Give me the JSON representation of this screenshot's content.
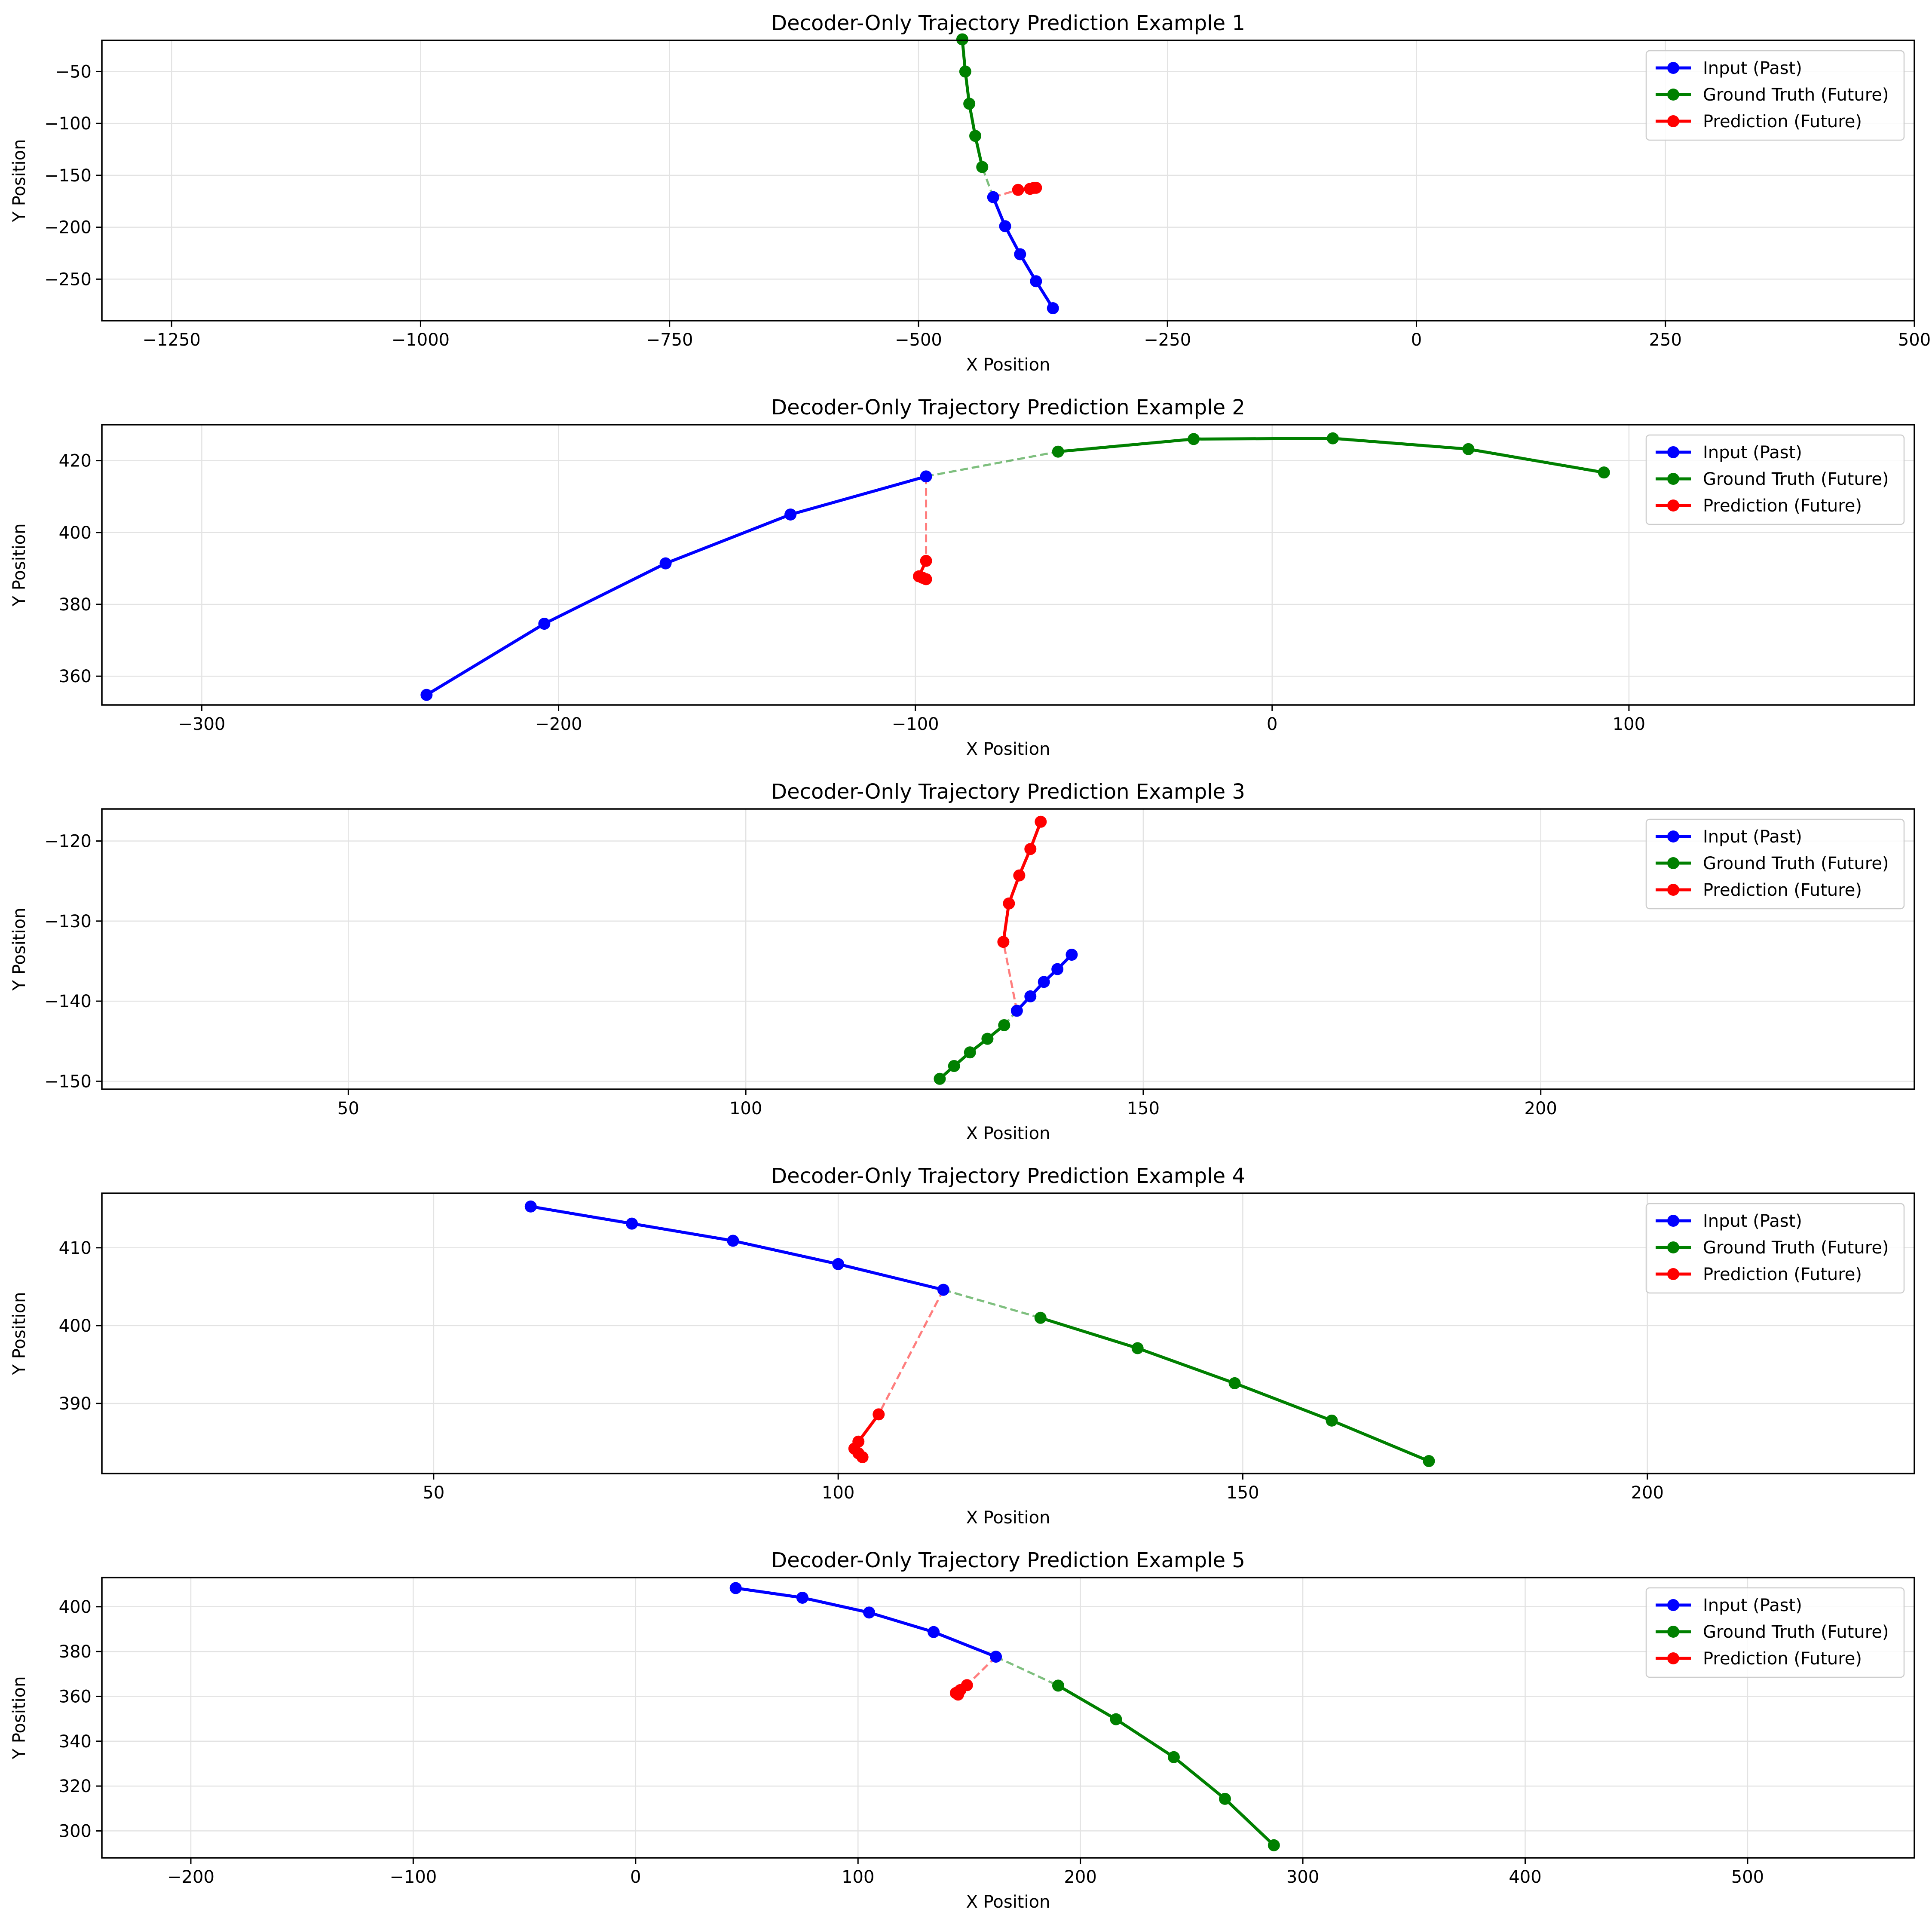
{
  "legend_labels": [
    "Input (Past)",
    "Ground Truth (Future)",
    "Prediction (Future)"
  ],
  "colors": {
    "input": "#0000ff",
    "ground_truth": "#008000",
    "prediction": "#ff0000",
    "grid": "#e3e3e3"
  },
  "chart_data": [
    {
      "type": "line",
      "title": "Decoder-Only Trajectory Prediction Example 1",
      "xlabel": "X Position",
      "ylabel": "Y Position",
      "xlim": [
        -1320,
        500
      ],
      "ylim": [
        -290,
        -20
      ],
      "xticks": [
        -1250,
        -1000,
        -750,
        -500,
        -250,
        0,
        250,
        500
      ],
      "yticks": [
        -50,
        -100,
        -150,
        -200,
        -250
      ],
      "grid": true,
      "legend_position": "top-right",
      "series": [
        {
          "name": "Input (Past)",
          "x": [
            -365,
            -382,
            -398,
            -413,
            -425
          ],
          "y": [
            -278,
            -252,
            -226,
            -199,
            -171
          ]
        },
        {
          "name": "Ground Truth (Future)",
          "x": [
            -436,
            -443,
            -449,
            -453,
            -456
          ],
          "y": [
            -142,
            -112,
            -81,
            -50,
            -19
          ]
        },
        {
          "name": "Prediction (Future)",
          "x": [
            -400,
            -388,
            -382,
            -384
          ],
          "y": [
            -164,
            -163,
            -162,
            -162
          ]
        }
      ]
    },
    {
      "type": "line",
      "title": "Decoder-Only Trajectory Prediction Example 2",
      "xlabel": "X Position",
      "ylabel": "Y Position",
      "xlim": [
        -328,
        180
      ],
      "ylim": [
        352,
        430
      ],
      "xticks": [
        -300,
        -200,
        -100,
        0,
        100
      ],
      "yticks": [
        360,
        380,
        400,
        420
      ],
      "grid": true,
      "legend_position": "top-right",
      "series": [
        {
          "name": "Input (Past)",
          "x": [
            -237,
            -204,
            -170,
            -135,
            -97
          ],
          "y": [
            354.8,
            374.6,
            391.4,
            405.0,
            415.6
          ]
        },
        {
          "name": "Ground Truth (Future)",
          "x": [
            -60,
            -22,
            17,
            55,
            93
          ],
          "y": [
            422.5,
            426.0,
            426.2,
            423.2,
            416.7
          ]
        },
        {
          "name": "Prediction (Future)",
          "x": [
            -97,
            -99,
            -98,
            -97
          ],
          "y": [
            392.1,
            387.8,
            387.4,
            387.0
          ]
        }
      ]
    },
    {
      "type": "line",
      "title": "Decoder-Only Trajectory Prediction Example 3",
      "xlabel": "X Position",
      "ylabel": "Y Position",
      "xlim": [
        19,
        247
      ],
      "ylim": [
        -151,
        -116
      ],
      "xticks": [
        50,
        100,
        150,
        200
      ],
      "yticks": [
        -120,
        -130,
        -140,
        -150
      ],
      "grid": true,
      "legend_position": "top-right",
      "series": [
        {
          "name": "Input (Past)",
          "x": [
            141.0,
            139.2,
            137.5,
            135.8,
            134.1
          ],
          "y": [
            -134.2,
            -136.0,
            -137.6,
            -139.4,
            -141.2
          ]
        },
        {
          "name": "Ground Truth (Future)",
          "x": [
            132.5,
            130.4,
            128.2,
            126.2,
            124.4
          ],
          "y": [
            -143.0,
            -144.7,
            -146.4,
            -148.1,
            -149.7
          ]
        },
        {
          "name": "Prediction (Future)",
          "x": [
            132.4,
            133.1,
            134.4,
            135.8,
            137.1
          ],
          "y": [
            -132.6,
            -127.8,
            -124.3,
            -121.0,
            -117.6
          ]
        }
      ]
    },
    {
      "type": "line",
      "title": "Decoder-Only Trajectory Prediction Example 4",
      "xlabel": "X Position",
      "ylabel": "Y Position",
      "xlim": [
        9,
        233
      ],
      "ylim": [
        381,
        417
      ],
      "xticks": [
        50,
        100,
        150,
        200
      ],
      "yticks": [
        390,
        400,
        410
      ],
      "grid": true,
      "legend_position": "top-right",
      "series": [
        {
          "name": "Input (Past)",
          "x": [
            62,
            74.5,
            87,
            100,
            113
          ],
          "y": [
            415.3,
            413.1,
            410.9,
            407.9,
            404.6
          ]
        },
        {
          "name": "Ground Truth (Future)",
          "x": [
            125,
            137,
            149,
            161,
            173
          ],
          "y": [
            401.0,
            397.1,
            392.6,
            387.8,
            382.6
          ]
        },
        {
          "name": "Prediction (Future)",
          "x": [
            105,
            102.5,
            102,
            102.5,
            103
          ],
          "y": [
            388.6,
            385.1,
            384.2,
            383.6,
            383.1
          ]
        }
      ]
    },
    {
      "type": "line",
      "title": "Decoder-Only Trajectory Prediction Example 5",
      "xlabel": "X Position",
      "ylabel": "Y Position",
      "xlim": [
        -240,
        575
      ],
      "ylim": [
        288,
        413
      ],
      "xticks": [
        -200,
        -100,
        0,
        100,
        200,
        300,
        400,
        500
      ],
      "yticks": [
        300,
        320,
        340,
        360,
        380,
        400
      ],
      "grid": true,
      "legend_position": "top-right",
      "series": [
        {
          "name": "Input (Past)",
          "x": [
            45,
            75,
            105,
            134,
            162
          ],
          "y": [
            408.3,
            404.0,
            397.4,
            388.7,
            377.7
          ]
        },
        {
          "name": "Ground Truth (Future)",
          "x": [
            190,
            216,
            242,
            265,
            287
          ],
          "y": [
            364.8,
            349.8,
            332.9,
            314.3,
            293.6
          ]
        },
        {
          "name": "Prediction (Future)",
          "x": [
            149,
            146,
            144,
            145
          ],
          "y": [
            365.0,
            362.8,
            361.5,
            360.8
          ]
        }
      ]
    }
  ]
}
